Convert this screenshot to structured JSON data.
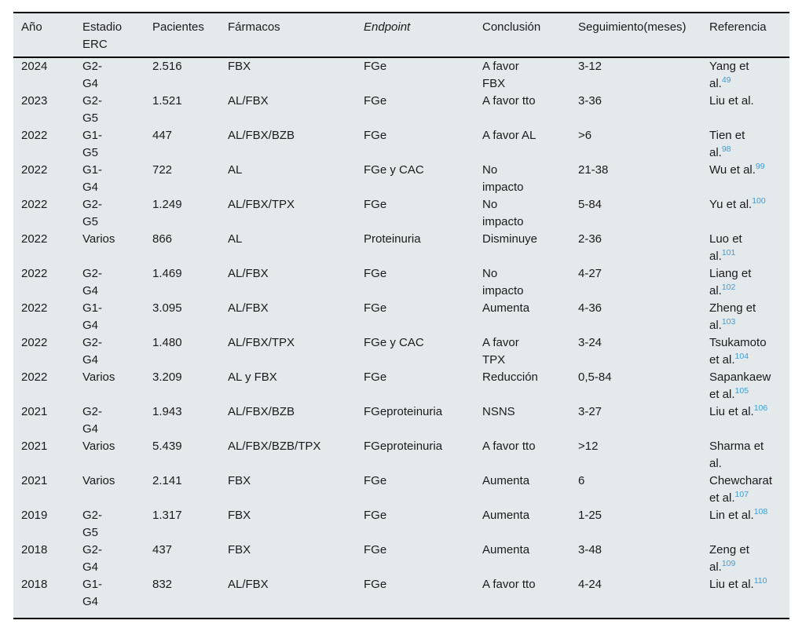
{
  "colors": {
    "table_background": "#e4e9ec",
    "rule_color": "#000000",
    "text_color": "#1b1b1b",
    "citation_blue": "#3f9bd6"
  },
  "table": {
    "columns": [
      {
        "key": "ano",
        "label": "Año",
        "italic": false
      },
      {
        "key": "estadio",
        "label": "Estadio\nERC",
        "italic": false
      },
      {
        "key": "pacientes",
        "label": "Pacientes",
        "italic": false
      },
      {
        "key": "farmacos",
        "label": "Fármacos",
        "italic": false
      },
      {
        "key": "endpoint",
        "label": "Endpoint",
        "italic": true
      },
      {
        "key": "conclusion",
        "label": "Conclusión",
        "italic": false
      },
      {
        "key": "seguimiento",
        "label": "Seguimiento(meses)",
        "italic": false
      },
      {
        "key": "referencia",
        "label": "Referencia",
        "italic": false
      }
    ],
    "rows": [
      {
        "ano": "2024",
        "estadio": "G2-\nG4",
        "pacientes": "2.516",
        "farmacos": "FBX",
        "endpoint": "FGe",
        "conclusion": "A favor\nFBX",
        "seguimiento": "3-12",
        "referencia": "Yang et\nal.",
        "ref_sup": "49"
      },
      {
        "ano": "2023",
        "estadio": "G2-\nG5",
        "pacientes": "1.521",
        "farmacos": "AL/FBX",
        "endpoint": "FGe",
        "conclusion": "A favor tto",
        "seguimiento": "3-36",
        "referencia": "Liu et al.",
        "ref_sup": ""
      },
      {
        "ano": "2022",
        "estadio": "G1-\nG5",
        "pacientes": "447",
        "farmacos": "AL/FBX/BZB",
        "endpoint": "FGe",
        "conclusion": "A favor AL",
        "seguimiento": ">6",
        "referencia": "Tien et\nal.",
        "ref_sup": "98"
      },
      {
        "ano": "2022",
        "estadio": "G1-\nG4",
        "pacientes": "722",
        "farmacos": "AL",
        "endpoint": "FGe y CAC",
        "conclusion": "No\nimpacto",
        "seguimiento": "21-38",
        "referencia": "Wu et al.",
        "ref_sup": "99"
      },
      {
        "ano": "2022",
        "estadio": "G2-\nG5",
        "pacientes": "1.249",
        "farmacos": "AL/FBX/TPX",
        "endpoint": "FGe",
        "conclusion": "No\nimpacto",
        "seguimiento": "5-84",
        "referencia": "Yu et al.",
        "ref_sup": "100"
      },
      {
        "ano": "2022",
        "estadio": "Varios",
        "pacientes": "866",
        "farmacos": "AL",
        "endpoint": "Proteinuria",
        "conclusion": "Disminuye",
        "seguimiento": "2-36",
        "referencia": "Luo et\nal.",
        "ref_sup": "101"
      },
      {
        "ano": "2022",
        "estadio": "G2-\nG4",
        "pacientes": "1.469",
        "farmacos": "AL/FBX",
        "endpoint": "FGe",
        "conclusion": "No\nimpacto",
        "seguimiento": "4-27",
        "referencia": "Liang et\nal.",
        "ref_sup": "102"
      },
      {
        "ano": "2022",
        "estadio": "G1-\nG4",
        "pacientes": "3.095",
        "farmacos": "AL/FBX",
        "endpoint": "FGe",
        "conclusion": "Aumenta",
        "seguimiento": "4-36",
        "referencia": "Zheng et\nal.",
        "ref_sup": "103"
      },
      {
        "ano": "2022",
        "estadio": "G2-\nG4",
        "pacientes": "1.480",
        "farmacos": "AL/FBX/TPX",
        "endpoint": "FGe y CAC",
        "conclusion": "A favor\nTPX",
        "seguimiento": "3-24",
        "referencia": "Tsukamoto\net al.",
        "ref_sup": "104"
      },
      {
        "ano": "2022",
        "estadio": "Varios",
        "pacientes": "3.209",
        "farmacos": "AL y FBX",
        "endpoint": "FGe",
        "conclusion": "Reducción",
        "seguimiento": "0,5-84",
        "referencia": "Sapankaew\net al.",
        "ref_sup": "105"
      },
      {
        "ano": "2021",
        "estadio": "G2-\nG4",
        "pacientes": "1.943",
        "farmacos": "AL/FBX/BZB",
        "endpoint": "FGeproteinuria",
        "conclusion": "NSNS",
        "seguimiento": "3-27",
        "referencia": "Liu et al.",
        "ref_sup": "106"
      },
      {
        "ano": "2021",
        "estadio": "Varios",
        "pacientes": "5.439",
        "farmacos": "AL/FBX/BZB/TPX",
        "endpoint": "FGeproteinuria",
        "conclusion": "A favor tto",
        "seguimiento": ">12",
        "referencia": "Sharma et\nal.",
        "ref_sup": ""
      },
      {
        "ano": "2021",
        "estadio": "Varios",
        "pacientes": "2.141",
        "farmacos": "FBX",
        "endpoint": "FGe",
        "conclusion": "Aumenta",
        "seguimiento": "6",
        "referencia": "Chewcharat\net al.",
        "ref_sup": "107"
      },
      {
        "ano": "2019",
        "estadio": "G2-\nG5",
        "pacientes": "1.317",
        "farmacos": "FBX",
        "endpoint": "FGe",
        "conclusion": "Aumenta",
        "seguimiento": "1-25",
        "referencia": "Lin et al.",
        "ref_sup": "108"
      },
      {
        "ano": "2018",
        "estadio": "G2-\nG4",
        "pacientes": "437",
        "farmacos": "FBX",
        "endpoint": "FGe",
        "conclusion": "Aumenta",
        "seguimiento": "3-48",
        "referencia": "Zeng et\nal.",
        "ref_sup": "109"
      },
      {
        "ano": "2018",
        "estadio": "G1-\nG4",
        "pacientes": "832",
        "farmacos": "AL/FBX",
        "endpoint": "FGe",
        "conclusion": "A favor tto",
        "seguimiento": "4-24",
        "referencia": "Liu et al.",
        "ref_sup": "110"
      }
    ]
  }
}
